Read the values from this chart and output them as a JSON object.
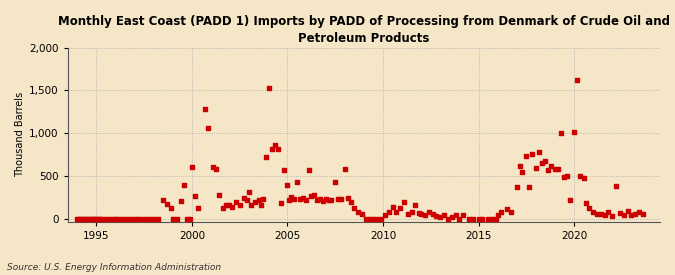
{
  "title": "Monthly East Coast (PADD 1) Imports by PADD of Processing from Denmark of Crude Oil and\nPetroleum Products",
  "ylabel": "Thousand Barrels",
  "source": "Source: U.S. Energy Information Administration",
  "background_color": "#f5e6c8",
  "marker_color": "#cc0000",
  "xlim": [
    1993.5,
    2024.5
  ],
  "ylim": [
    -30,
    2000
  ],
  "yticks": [
    0,
    500,
    1000,
    1500,
    2000
  ],
  "xticks": [
    1995,
    2000,
    2005,
    2010,
    2015,
    2020
  ],
  "data_points": [
    [
      1994.0,
      0
    ],
    [
      1994.1,
      0
    ],
    [
      1994.2,
      0
    ],
    [
      1994.3,
      0
    ],
    [
      1994.4,
      0
    ],
    [
      1994.5,
      0
    ],
    [
      1994.6,
      0
    ],
    [
      1994.7,
      0
    ],
    [
      1994.8,
      0
    ],
    [
      1994.9,
      0
    ],
    [
      1995.0,
      0
    ],
    [
      1995.1,
      0
    ],
    [
      1995.2,
      0
    ],
    [
      1995.3,
      0
    ],
    [
      1995.5,
      0
    ],
    [
      1995.7,
      0
    ],
    [
      1995.9,
      0
    ],
    [
      1996.0,
      0
    ],
    [
      1996.2,
      0
    ],
    [
      1996.4,
      0
    ],
    [
      1996.6,
      0
    ],
    [
      1996.8,
      0
    ],
    [
      1997.0,
      0
    ],
    [
      1997.2,
      0
    ],
    [
      1997.4,
      0
    ],
    [
      1997.6,
      0
    ],
    [
      1997.8,
      0
    ],
    [
      1998.0,
      0
    ],
    [
      1998.2,
      0
    ],
    [
      1998.5,
      220
    ],
    [
      1998.7,
      175
    ],
    [
      1998.9,
      130
    ],
    [
      1999.0,
      0
    ],
    [
      1999.2,
      0
    ],
    [
      1999.4,
      210
    ],
    [
      1999.6,
      400
    ],
    [
      1999.75,
      0
    ],
    [
      1999.9,
      0
    ],
    [
      2000.0,
      610
    ],
    [
      2000.15,
      270
    ],
    [
      2000.3,
      130
    ],
    [
      2000.7,
      1280
    ],
    [
      2000.85,
      1060
    ],
    [
      2001.1,
      610
    ],
    [
      2001.25,
      590
    ],
    [
      2001.4,
      280
    ],
    [
      2001.6,
      135
    ],
    [
      2001.8,
      170
    ],
    [
      2001.95,
      160
    ],
    [
      2002.1,
      140
    ],
    [
      2002.3,
      200
    ],
    [
      2002.5,
      160
    ],
    [
      2002.7,
      250
    ],
    [
      2002.9,
      220
    ],
    [
      2003.0,
      320
    ],
    [
      2003.1,
      160
    ],
    [
      2003.3,
      200
    ],
    [
      2003.5,
      220
    ],
    [
      2003.6,
      170
    ],
    [
      2003.7,
      230
    ],
    [
      2003.85,
      730
    ],
    [
      2004.05,
      1530
    ],
    [
      2004.2,
      820
    ],
    [
      2004.35,
      870
    ],
    [
      2004.5,
      820
    ],
    [
      2004.65,
      190
    ],
    [
      2004.8,
      570
    ],
    [
      2004.95,
      400
    ],
    [
      2005.1,
      220
    ],
    [
      2005.2,
      260
    ],
    [
      2005.35,
      230
    ],
    [
      2005.5,
      430
    ],
    [
      2005.65,
      230
    ],
    [
      2005.8,
      250
    ],
    [
      2005.95,
      225
    ],
    [
      2006.1,
      570
    ],
    [
      2006.25,
      270
    ],
    [
      2006.4,
      280
    ],
    [
      2006.55,
      220
    ],
    [
      2006.7,
      240
    ],
    [
      2006.85,
      210
    ],
    [
      2007.0,
      240
    ],
    [
      2007.15,
      220
    ],
    [
      2007.3,
      225
    ],
    [
      2007.5,
      430
    ],
    [
      2007.65,
      230
    ],
    [
      2007.8,
      240
    ],
    [
      2008.0,
      580
    ],
    [
      2008.15,
      250
    ],
    [
      2008.3,
      195
    ],
    [
      2008.5,
      130
    ],
    [
      2008.7,
      80
    ],
    [
      2008.9,
      60
    ],
    [
      2009.1,
      0
    ],
    [
      2009.3,
      0
    ],
    [
      2009.5,
      0
    ],
    [
      2009.7,
      0
    ],
    [
      2009.9,
      0
    ],
    [
      2010.1,
      50
    ],
    [
      2010.3,
      80
    ],
    [
      2010.5,
      140
    ],
    [
      2010.7,
      80
    ],
    [
      2010.9,
      130
    ],
    [
      2011.1,
      200
    ],
    [
      2011.3,
      60
    ],
    [
      2011.5,
      80
    ],
    [
      2011.7,
      160
    ],
    [
      2011.9,
      75
    ],
    [
      2012.0,
      60
    ],
    [
      2012.2,
      50
    ],
    [
      2012.4,
      80
    ],
    [
      2012.6,
      65
    ],
    [
      2012.8,
      40
    ],
    [
      2013.0,
      30
    ],
    [
      2013.2,
      50
    ],
    [
      2013.4,
      0
    ],
    [
      2013.6,
      30
    ],
    [
      2013.8,
      45
    ],
    [
      2014.0,
      0
    ],
    [
      2014.2,
      50
    ],
    [
      2014.5,
      0
    ],
    [
      2014.7,
      0
    ],
    [
      2015.0,
      0
    ],
    [
      2015.2,
      0
    ],
    [
      2015.5,
      0
    ],
    [
      2015.7,
      0
    ],
    [
      2015.9,
      0
    ],
    [
      2016.0,
      45
    ],
    [
      2016.2,
      80
    ],
    [
      2016.5,
      120
    ],
    [
      2016.7,
      80
    ],
    [
      2017.0,
      370
    ],
    [
      2017.15,
      620
    ],
    [
      2017.3,
      550
    ],
    [
      2017.5,
      740
    ],
    [
      2017.65,
      380
    ],
    [
      2017.8,
      760
    ],
    [
      2018.0,
      600
    ],
    [
      2018.15,
      780
    ],
    [
      2018.3,
      650
    ],
    [
      2018.5,
      680
    ],
    [
      2018.65,
      570
    ],
    [
      2018.8,
      620
    ],
    [
      2019.0,
      580
    ],
    [
      2019.15,
      580
    ],
    [
      2019.3,
      1000
    ],
    [
      2019.5,
      490
    ],
    [
      2019.65,
      500
    ],
    [
      2019.8,
      220
    ],
    [
      2020.0,
      1010
    ],
    [
      2020.15,
      1620
    ],
    [
      2020.3,
      500
    ],
    [
      2020.5,
      480
    ],
    [
      2020.65,
      190
    ],
    [
      2020.8,
      130
    ],
    [
      2021.0,
      80
    ],
    [
      2021.2,
      60
    ],
    [
      2021.4,
      55
    ],
    [
      2021.6,
      50
    ],
    [
      2021.8,
      80
    ],
    [
      2022.0,
      40
    ],
    [
      2022.2,
      390
    ],
    [
      2022.4,
      70
    ],
    [
      2022.6,
      50
    ],
    [
      2022.8,
      90
    ],
    [
      2023.0,
      50
    ],
    [
      2023.2,
      55
    ],
    [
      2023.4,
      80
    ],
    [
      2023.6,
      60
    ]
  ]
}
